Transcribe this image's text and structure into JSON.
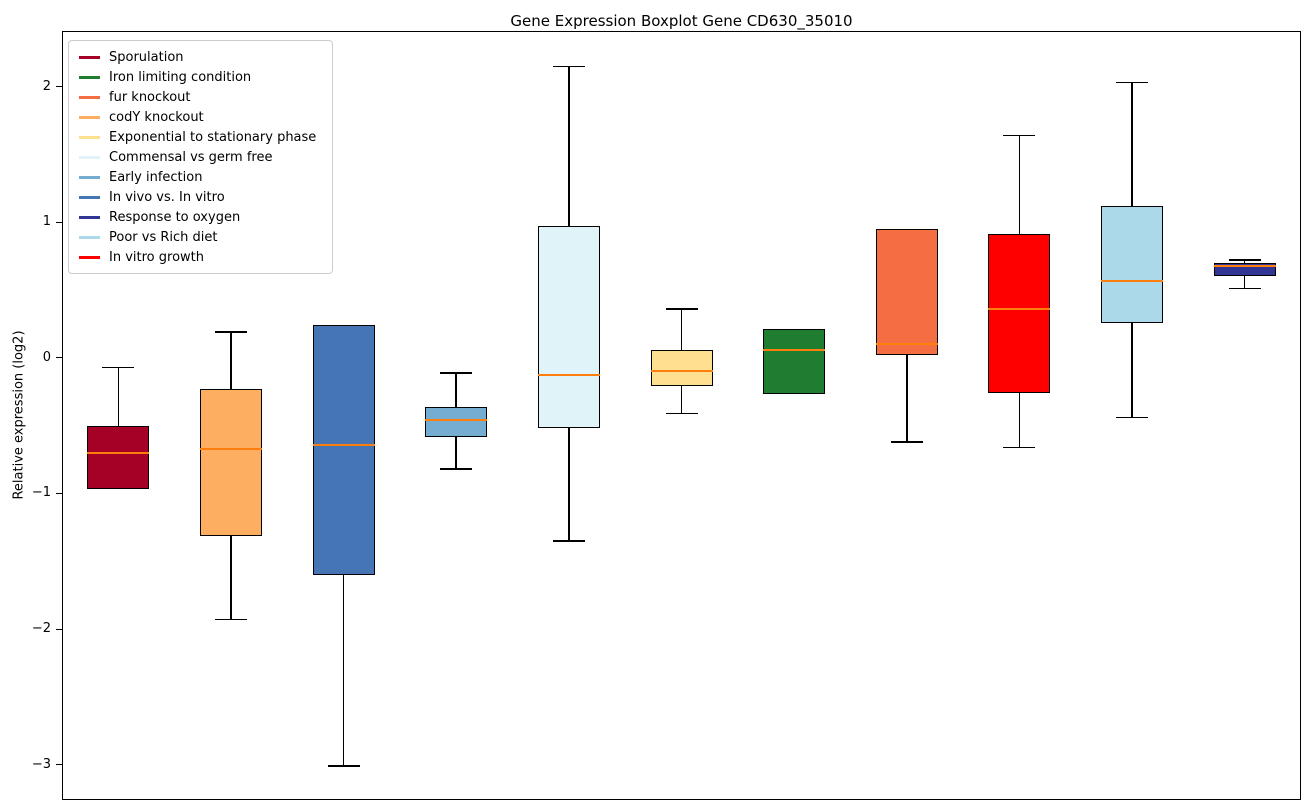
{
  "chart_data": {
    "type": "boxplot",
    "title": "Gene Expression Boxplot Gene CD630_35010",
    "xlabel": "",
    "ylabel": "Relative expression (log2)",
    "ylim": [
      -3.26,
      2.41
    ],
    "grid": false,
    "legend_position": "upper left",
    "median_color": "#ff7f0e",
    "whisker_color": "#000000",
    "box_edge_color": "#000000",
    "yticks": [
      {
        "value": 2,
        "label": "2"
      },
      {
        "value": 1,
        "label": "1"
      },
      {
        "value": 0,
        "label": "0"
      },
      {
        "value": -1,
        "label": "−1"
      },
      {
        "value": -2,
        "label": "−2"
      },
      {
        "value": -3,
        "label": "−3"
      }
    ],
    "legend": [
      {
        "label": "Sporulation",
        "color": "#a50026"
      },
      {
        "label": "Iron limiting condition",
        "color": "#1e7d2f"
      },
      {
        "label": "fur knockout",
        "color": "#f46d43"
      },
      {
        "label": "codY knockout",
        "color": "#fdae61"
      },
      {
        "label": "Exponential to stationary phase",
        "color": "#fee090"
      },
      {
        "label": "Commensal vs germ free",
        "color": "#e0f3f8"
      },
      {
        "label": "Early infection",
        "color": "#74add1"
      },
      {
        "label": "In vivo vs. In vitro",
        "color": "#4575b4"
      },
      {
        "label": "Response to oxygen",
        "color": "#313695"
      },
      {
        "label": "Poor vs Rich diet",
        "color": "#abd9e9"
      },
      {
        "label": "In vitro growth",
        "color": "#ff0000"
      }
    ],
    "series": [
      {
        "name": "Sporulation",
        "color": "#a50026",
        "whisker_low": -0.97,
        "q1": -0.97,
        "median": -0.7,
        "q3": -0.5,
        "whisker_high": -0.07
      },
      {
        "name": "codY knockout",
        "color": "#fdae61",
        "whisker_low": -1.93,
        "q1": -1.31,
        "median": -0.67,
        "q3": -0.23,
        "whisker_high": 0.19
      },
      {
        "name": "In vivo vs. In vitro",
        "color": "#4575b4",
        "whisker_low": -3.01,
        "q1": -1.6,
        "median": -0.64,
        "q3": 0.24,
        "whisker_high": 0.24
      },
      {
        "name": "Early infection",
        "color": "#74add1",
        "whisker_low": -0.82,
        "q1": -0.58,
        "median": -0.46,
        "q3": -0.36,
        "whisker_high": -0.11
      },
      {
        "name": "Commensal vs germ free",
        "color": "#e0f3f8",
        "whisker_low": -1.35,
        "q1": -0.52,
        "median": -0.13,
        "q3": 0.97,
        "whisker_high": 2.15
      },
      {
        "name": "Exponential to stationary phase",
        "color": "#fee090",
        "whisker_low": -0.41,
        "q1": -0.21,
        "median": -0.1,
        "q3": 0.06,
        "whisker_high": 0.36
      },
      {
        "name": "Iron limiting condition",
        "color": "#1e7d2f",
        "whisker_low": -0.27,
        "q1": -0.27,
        "median": 0.06,
        "q3": 0.21,
        "whisker_high": 0.21
      },
      {
        "name": "fur knockout",
        "color": "#f46d43",
        "whisker_low": -0.62,
        "q1": 0.02,
        "median": 0.1,
        "q3": 0.95,
        "whisker_high": 0.95
      },
      {
        "name": "In vitro growth",
        "color": "#ff0000",
        "whisker_low": -0.66,
        "q1": -0.26,
        "median": 0.36,
        "q3": 0.91,
        "whisker_high": 1.64
      },
      {
        "name": "Poor vs Rich diet",
        "color": "#abd9e9",
        "whisker_low": -0.44,
        "q1": 0.26,
        "median": 0.57,
        "q3": 1.12,
        "whisker_high": 2.03
      },
      {
        "name": "Response to oxygen",
        "color": "#313695",
        "whisker_low": 0.51,
        "q1": 0.6,
        "median": 0.68,
        "q3": 0.7,
        "whisker_high": 0.72
      }
    ]
  }
}
